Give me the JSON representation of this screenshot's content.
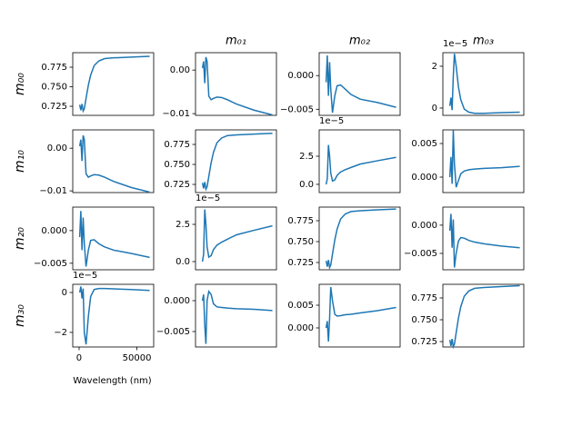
{
  "chart_data": [
    {
      "type": "line",
      "ylabel": "m₀₀",
      "color": "#1f77b4",
      "xlim": [
        -5500,
        64500
      ],
      "ylim": [
        0.7134,
        0.7936
      ],
      "yticks": [
        0.725,
        {
          "value": 0.75,
          "label": "0.750"
        },
        0.775
      ],
      "x": [
        500,
        1500,
        2500,
        3500,
        4500,
        6000,
        8000,
        10000,
        13000,
        17000,
        22000,
        30000,
        45000,
        61000
      ],
      "values": [
        0.727,
        0.72,
        0.728,
        0.719,
        0.722,
        0.735,
        0.752,
        0.765,
        0.777,
        0.783,
        0.786,
        0.787,
        0.788,
        0.789
      ]
    },
    {
      "type": "line",
      "title": "m₀₁",
      "color": "#1f77b4",
      "xlim": [
        -5500,
        64500
      ],
      "ylim": [
        -0.0104,
        0.004
      ],
      "yticks": [
        {
          "value": 0,
          "label": "0.00"
        },
        {
          "value": -0.01,
          "label": "−0.01"
        }
      ],
      "x": [
        500,
        1500,
        2500,
        3500,
        4500,
        6000,
        8000,
        10000,
        13000,
        17000,
        22000,
        30000,
        45000,
        61000
      ],
      "values": [
        0.0005,
        0.002,
        -0.003,
        0.003,
        0.002,
        -0.006,
        -0.0068,
        -0.0065,
        -0.0062,
        -0.0063,
        -0.0068,
        -0.0078,
        -0.0092,
        -0.0103
      ]
    },
    {
      "type": "line",
      "title": "m₀₂",
      "color": "#1f77b4",
      "xlim": [
        -5500,
        64500
      ],
      "ylim": [
        -0.0059,
        0.0034
      ],
      "yticks": [
        {
          "value": 0,
          "label": "0.000"
        },
        {
          "value": -0.005,
          "label": "−0.005"
        }
      ],
      "x": [
        500,
        1500,
        2500,
        3500,
        4500,
        6000,
        8000,
        10000,
        13000,
        17000,
        22000,
        30000,
        45000,
        61000
      ],
      "values": [
        -0.001,
        0.003,
        -0.003,
        0.002,
        -0.002,
        -0.0055,
        -0.003,
        -0.0015,
        -0.0014,
        -0.002,
        -0.0028,
        -0.0035,
        -0.004,
        -0.0047
      ]
    },
    {
      "type": "line",
      "title": "m₀₃",
      "offset_text": "1e−5",
      "color": "#1f77b4",
      "xlim": [
        -5500,
        64500
      ],
      "ylim": [
        -0.35,
        2.65
      ],
      "yticks": [
        0,
        2
      ],
      "x": [
        500,
        1500,
        2500,
        3500,
        4500,
        6000,
        8000,
        10000,
        13000,
        17000,
        22000,
        30000,
        45000,
        61000
      ],
      "values": [
        0.1,
        0.5,
        -0.1,
        1.5,
        2.6,
        2.0,
        1.0,
        0.4,
        -0.05,
        -0.2,
        -0.25,
        -0.25,
        -0.22,
        -0.2
      ]
    },
    {
      "type": "line",
      "ylabel": "m₁₀",
      "color": "#1f77b4",
      "xlim": [
        -5500,
        64500
      ],
      "ylim": [
        -0.0104,
        0.0043
      ],
      "yticks": [
        {
          "value": 0,
          "label": "0.00"
        },
        {
          "value": -0.01,
          "label": "−0.01"
        }
      ],
      "x": [
        500,
        1500,
        2500,
        3500,
        4500,
        6000,
        8000,
        10000,
        13000,
        17000,
        22000,
        30000,
        45000,
        61000
      ],
      "values": [
        0.0005,
        0.002,
        -0.003,
        0.003,
        0.002,
        -0.006,
        -0.0068,
        -0.0065,
        -0.0062,
        -0.0063,
        -0.0068,
        -0.0078,
        -0.0092,
        -0.0103
      ]
    },
    {
      "type": "line",
      "color": "#1f77b4",
      "xlim": [
        -5500,
        64500
      ],
      "ylim": [
        0.7148,
        0.7932
      ],
      "yticks": [
        0.725,
        {
          "value": 0.75,
          "label": "0.750"
        },
        0.775
      ],
      "x": [
        500,
        1500,
        2500,
        3500,
        4500,
        6000,
        8000,
        10000,
        13000,
        17000,
        22000,
        30000,
        45000,
        61000
      ],
      "values": [
        0.727,
        0.72,
        0.728,
        0.719,
        0.722,
        0.735,
        0.752,
        0.765,
        0.777,
        0.783,
        0.786,
        0.787,
        0.788,
        0.789
      ]
    },
    {
      "type": "line",
      "offset_text": "1e−5",
      "color": "#1f77b4",
      "xlim": [
        -5500,
        64500
      ],
      "ylim": [
        -0.73,
        4.84
      ],
      "yticks": [
        {
          "value": 0,
          "label": "0.0"
        },
        2.5
      ],
      "x": [
        500,
        1500,
        2500,
        3500,
        4500,
        6000,
        8000,
        10000,
        13000,
        17000,
        22000,
        30000,
        45000,
        61000
      ],
      "values": [
        0.0,
        0.5,
        3.5,
        2.5,
        1.0,
        0.3,
        0.4,
        0.8,
        1.1,
        1.3,
        1.5,
        1.8,
        2.1,
        2.4
      ]
    },
    {
      "type": "line",
      "color": "#1f77b4",
      "xlim": [
        -5500,
        64500
      ],
      "ylim": [
        -0.0023,
        0.00703
      ],
      "yticks": [
        {
          "value": 0,
          "label": "0.000"
        },
        0.005
      ],
      "x": [
        500,
        1500,
        2500,
        3500,
        4500,
        6000,
        8000,
        10000,
        13000,
        17000,
        22000,
        30000,
        45000,
        61000
      ],
      "values": [
        0.0,
        0.003,
        -0.001,
        0.007,
        0.002,
        -0.0015,
        -0.0005,
        0.0005,
        0.0009,
        0.0011,
        0.0012,
        0.0013,
        0.0014,
        0.0016
      ]
    },
    {
      "type": "line",
      "ylabel": "m₂₀",
      "color": "#1f77b4",
      "xlim": [
        -5500,
        64500
      ],
      "ylim": [
        -0.006,
        0.0036
      ],
      "yticks": [
        {
          "value": 0,
          "label": "0.000"
        },
        {
          "value": -0.005,
          "label": "−0.005"
        }
      ],
      "x": [
        500,
        1500,
        2500,
        3500,
        4500,
        6000,
        8000,
        10000,
        13000,
        17000,
        22000,
        30000,
        45000,
        61000
      ],
      "values": [
        -0.001,
        0.003,
        -0.003,
        0.002,
        -0.002,
        -0.0055,
        -0.003,
        -0.0015,
        -0.0014,
        -0.002,
        -0.0025,
        -0.003,
        -0.0035,
        -0.0041
      ]
    },
    {
      "type": "line",
      "offset_text": "1e−5",
      "color": "#1f77b4",
      "xlim": [
        -5500,
        64500
      ],
      "ylim": [
        -0.55,
        3.66
      ],
      "yticks": [
        {
          "value": 0,
          "label": "0.0"
        },
        2.5
      ],
      "x": [
        500,
        1500,
        2500,
        3500,
        4500,
        6000,
        8000,
        10000,
        13000,
        17000,
        22000,
        30000,
        45000,
        61000
      ],
      "values": [
        0.0,
        0.5,
        3.5,
        2.5,
        1.0,
        0.3,
        0.4,
        0.8,
        1.1,
        1.3,
        1.5,
        1.8,
        2.1,
        2.4
      ]
    },
    {
      "type": "line",
      "color": "#1f77b4",
      "xlim": [
        -5500,
        64500
      ],
      "ylim": [
        0.7163,
        0.7913
      ],
      "yticks": [
        0.725,
        {
          "value": 0.75,
          "label": "0.750"
        },
        0.775
      ],
      "x": [
        500,
        1500,
        2500,
        3500,
        4500,
        6000,
        8000,
        10000,
        13000,
        17000,
        22000,
        30000,
        45000,
        61000
      ],
      "values": [
        0.727,
        0.72,
        0.728,
        0.719,
        0.722,
        0.735,
        0.752,
        0.765,
        0.777,
        0.783,
        0.786,
        0.787,
        0.788,
        0.789
      ]
    },
    {
      "type": "line",
      "color": "#1f77b4",
      "xlim": [
        -5500,
        64500
      ],
      "ylim": [
        -0.0079,
        0.0032
      ],
      "yticks": [
        {
          "value": 0,
          "label": "0.000"
        },
        {
          "value": -0.005,
          "label": "−0.005"
        }
      ],
      "x": [
        500,
        1500,
        2500,
        3500,
        4500,
        6000,
        8000,
        10000,
        13000,
        17000,
        22000,
        30000,
        45000,
        61000
      ],
      "values": [
        -0.001,
        0.002,
        -0.004,
        0.001,
        -0.0075,
        -0.005,
        -0.0028,
        -0.0022,
        -0.0023,
        -0.0027,
        -0.003,
        -0.0033,
        -0.0037,
        -0.004
      ]
    },
    {
      "type": "line",
      "ylabel": "m₃₀",
      "offset_text": "1e−5",
      "xlabel": "Wavelength (nm)",
      "color": "#1f77b4",
      "xlim": [
        -5500,
        64500
      ],
      "xticks": [
        0,
        50000
      ],
      "ylim": [
        -2.73,
        0.41
      ],
      "yticks": [
        0,
        {
          "value": -2,
          "label": "−2"
        }
      ],
      "x": [
        500,
        1500,
        2500,
        3500,
        4500,
        6000,
        8000,
        10000,
        13000,
        17000,
        22000,
        30000,
        45000,
        61000
      ],
      "values": [
        0.0,
        0.3,
        -0.3,
        0.2,
        -2.0,
        -2.6,
        -1.2,
        -0.2,
        0.15,
        0.2,
        0.2,
        0.18,
        0.15,
        0.1
      ]
    },
    {
      "type": "line",
      "color": "#1f77b4",
      "xlim": [
        -5500,
        64500
      ],
      "ylim": [
        -0.0075,
        0.00265
      ],
      "yticks": [
        {
          "value": 0,
          "label": "0.000"
        },
        {
          "value": -0.005,
          "label": "−0.005"
        }
      ],
      "x": [
        500,
        1500,
        2500,
        3500,
        4500,
        6000,
        8000,
        10000,
        13000,
        17000,
        22000,
        30000,
        45000,
        61000
      ],
      "values": [
        0.0,
        0.001,
        -0.004,
        -0.007,
        0.0,
        0.0015,
        0.001,
        -0.0005,
        -0.001,
        -0.0011,
        -0.0012,
        -0.0013,
        -0.0014,
        -0.0016
      ]
    },
    {
      "type": "line",
      "color": "#1f77b4",
      "xlim": [
        -5500,
        64500
      ],
      "ylim": [
        -0.0042,
        0.0096
      ],
      "yticks": [
        {
          "value": 0,
          "label": "0.000"
        },
        0.005
      ],
      "x": [
        500,
        1500,
        2500,
        3500,
        4500,
        6000,
        8000,
        10000,
        13000,
        17000,
        22000,
        30000,
        45000,
        61000
      ],
      "values": [
        0.0,
        0.0015,
        -0.003,
        0.002,
        0.009,
        0.006,
        0.003,
        0.0026,
        0.0027,
        0.0029,
        0.003,
        0.0033,
        0.0038,
        0.0045
      ]
    },
    {
      "type": "line",
      "color": "#1f77b4",
      "xlim": [
        -5500,
        64500
      ],
      "ylim": [
        0.7188,
        0.7906
      ],
      "yticks": [
        0.725,
        {
          "value": 0.75,
          "label": "0.750"
        },
        0.775
      ],
      "x": [
        500,
        1500,
        2500,
        3500,
        4500,
        6000,
        8000,
        10000,
        13000,
        17000,
        22000,
        30000,
        45000,
        61000
      ],
      "values": [
        0.727,
        0.72,
        0.728,
        0.719,
        0.722,
        0.735,
        0.752,
        0.765,
        0.777,
        0.783,
        0.786,
        0.787,
        0.788,
        0.789
      ]
    }
  ]
}
